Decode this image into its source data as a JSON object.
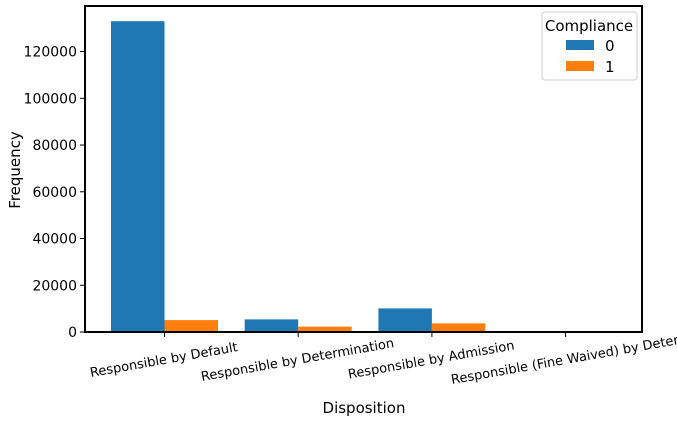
{
  "chart_data": {
    "type": "bar",
    "title": "",
    "xlabel": "Disposition",
    "ylabel": "Frequency",
    "categories": [
      "Responsible by Default",
      "Responsible by Determination",
      "Responsible by Admission",
      "Responsible (Fine Waived) by Deter"
    ],
    "series": [
      {
        "name": "0",
        "color": "#1f77b4",
        "values": [
          133000,
          5400,
          10100,
          100
        ]
      },
      {
        "name": "1",
        "color": "#ff7f0e",
        "values": [
          5100,
          2300,
          3700,
          20
        ]
      }
    ],
    "ylim": [
      0,
      139500
    ],
    "yticks": [
      0,
      20000,
      40000,
      60000,
      80000,
      100000,
      120000
    ],
    "ytick_labels": [
      "0",
      "20000",
      "40000",
      "60000",
      "80000",
      "100000",
      "120000"
    ],
    "legend": {
      "title": "Compliance",
      "position": "top-right"
    },
    "grid": false
  }
}
